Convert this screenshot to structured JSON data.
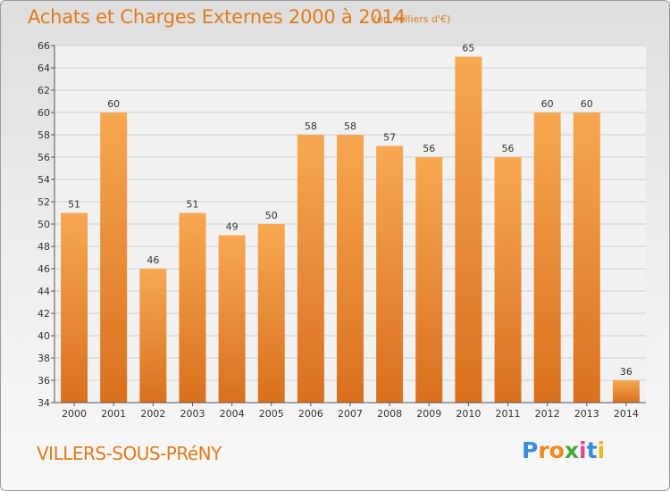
{
  "title": "Achats et Charges Externes 2000 à 2014",
  "subtitle": "(en milliers d'€)",
  "commune": "VILLERS-SOUS-PRéNY",
  "logo": {
    "letters": [
      "P",
      "r",
      "o",
      "x",
      "i",
      "t",
      "i"
    ],
    "colors": [
      "#3a8dde",
      "#f08a1c",
      "#f08a1c",
      "#4aa83a",
      "#d94a8a",
      "#3a8dde",
      "#e8b820"
    ]
  },
  "colors": {
    "bar": "#f5a04a",
    "bar_dark": "#d9701e",
    "accent": "#e07a1c"
  },
  "chart_data": {
    "type": "bar",
    "categories": [
      "2000",
      "2001",
      "2002",
      "2003",
      "2004",
      "2005",
      "2006",
      "2007",
      "2008",
      "2009",
      "2010",
      "2011",
      "2012",
      "2013",
      "2014"
    ],
    "values": [
      51,
      60,
      46,
      51,
      49,
      50,
      58,
      58,
      57,
      56,
      65,
      56,
      60,
      60,
      36
    ],
    "ylim": [
      34,
      66
    ],
    "yticks": [
      34,
      36,
      38,
      40,
      42,
      44,
      46,
      48,
      50,
      52,
      54,
      56,
      58,
      60,
      62,
      64,
      66
    ],
    "grid": true
  }
}
